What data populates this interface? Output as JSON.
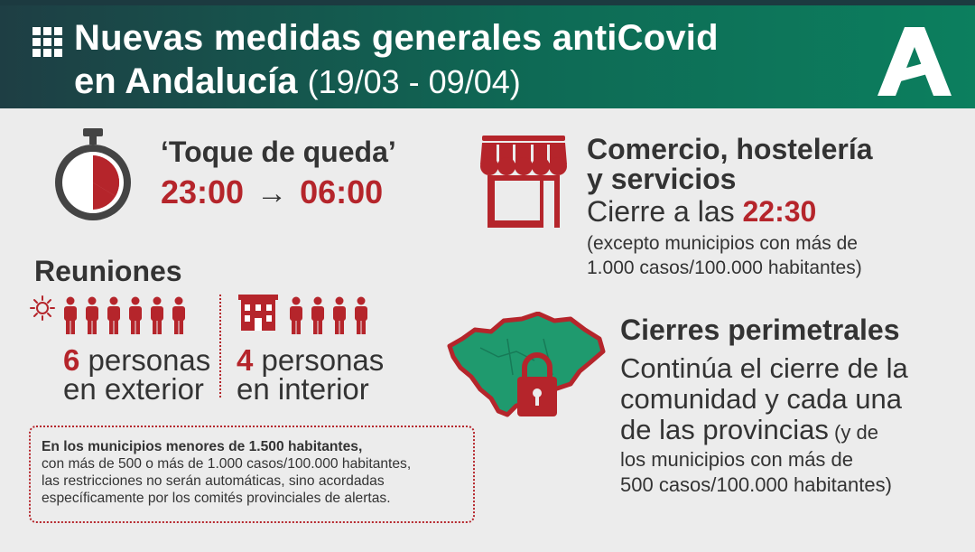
{
  "header": {
    "title_line1": "Nuevas medidas generales antiCovid",
    "title_line2": "en Andalucía",
    "dates": "(19/03 - 09/04)",
    "grid_icon": "grid-icon",
    "logo_icon": "junta-andalucia-logo"
  },
  "toque": {
    "icon": "stopwatch-moon-icon",
    "title": "‘Toque de queda’",
    "start": "23:00",
    "arrow": "→",
    "end": "06:00"
  },
  "reuniones": {
    "title": "Reuniones",
    "exterior": {
      "icon": "sun-icon",
      "people_count": 6,
      "num": "6",
      "line1": "personas",
      "line2": "en exterior"
    },
    "interior": {
      "icon": "building-icon",
      "people_count": 4,
      "num": "4",
      "line1": "personas",
      "line2": "en interior"
    }
  },
  "note": {
    "line1": "En los municipios menores de 1.500 habitantes,",
    "line2": "con más de 500 o más de 1.000 casos/100.000 habitantes,",
    "line3": "las restricciones no serán automáticas, sino acordadas",
    "line4": "específicamente por los comités provinciales de alertas."
  },
  "comercio": {
    "icon": "shop-awning-icon",
    "title1": "Comercio, hostelería",
    "title2": "y servicios",
    "cierre_prefix": "Cierre a las ",
    "cierre_time": "22:30",
    "except1": "(excepto municipios con más de",
    "except2": "1.000 casos/100.000 habitantes)"
  },
  "cierres": {
    "icon": "andalucia-map-lock-icon",
    "title": "Cierres perimetrales",
    "line1": "Continúa el cierre de la",
    "line2": "comunidad y cada una",
    "line3a": "de las provincias",
    "line3b": " (y de",
    "line4": "los municipios con más de",
    "line5": "500 casos/100.000 habitantes)"
  },
  "colors": {
    "accent_red": "#b5252b",
    "header_dark": "#1e3e44",
    "header_green": "#0c7f5e",
    "map_green": "#1f9a6e"
  }
}
